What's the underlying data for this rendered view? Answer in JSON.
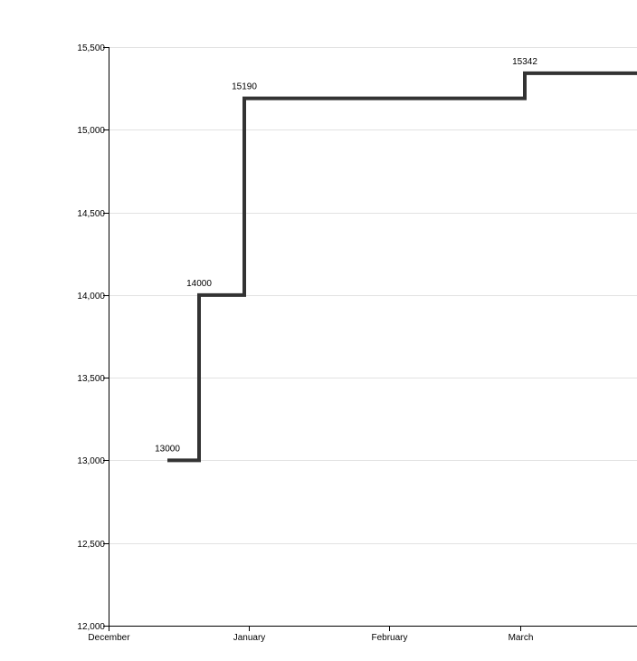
{
  "chart_data": {
    "type": "line",
    "interpolation": "step-after",
    "title": "",
    "xlabel": "",
    "ylabel": "",
    "grid": true,
    "xlim": [
      "2015-12-01",
      "2016-03-31"
    ],
    "ylim": [
      12000,
      15500
    ],
    "x_ticks": [
      {
        "date": "2015-12-01",
        "label": "December"
      },
      {
        "date": "2016-01-01",
        "label": "January"
      },
      {
        "date": "2016-02-01",
        "label": "February"
      },
      {
        "date": "2016-03-01",
        "label": "March"
      }
    ],
    "y_ticks": [
      {
        "value": 12000,
        "label": "12,000"
      },
      {
        "value": 12500,
        "label": "12,500"
      },
      {
        "value": 13000,
        "label": "13,000"
      },
      {
        "value": 13500,
        "label": "13,500"
      },
      {
        "value": 14000,
        "label": "14,000"
      },
      {
        "value": 14500,
        "label": "14,500"
      },
      {
        "value": 15000,
        "label": "15,000"
      },
      {
        "value": 15500,
        "label": "15,500"
      }
    ],
    "series": [
      {
        "color": "#333333",
        "points": [
          {
            "x": "2015-12-14",
            "y": 13000,
            "label": "13000"
          },
          {
            "x": "2015-12-21",
            "y": 14000,
            "label": "14000"
          },
          {
            "x": "2015-12-31",
            "y": 15190,
            "label": "15190"
          },
          {
            "x": "2016-03-02",
            "y": 15342,
            "label": "15342"
          }
        ]
      }
    ]
  }
}
